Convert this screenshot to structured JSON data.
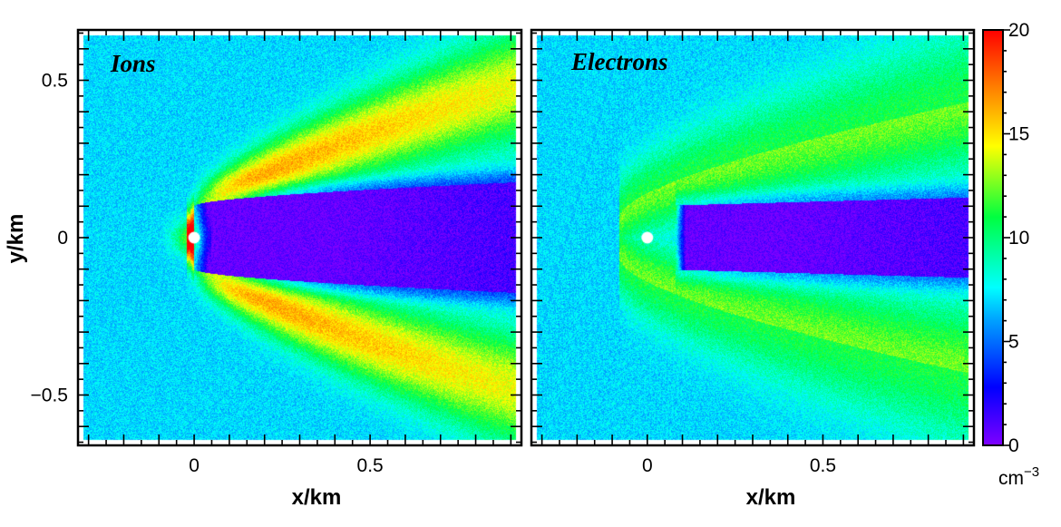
{
  "chart_data": [
    {
      "type": "heatmap",
      "title": "Ions",
      "xlabel": "x/km",
      "ylabel": "y/km",
      "xlim": [
        -0.33,
        0.93
      ],
      "ylim": [
        -0.66,
        0.66
      ],
      "xticks": [
        {
          "value": 0,
          "label": "0"
        },
        {
          "value": 0.5,
          "label": "0.5"
        }
      ],
      "yticks": [
        {
          "value": 0.5,
          "label": "0.5"
        },
        {
          "value": 0,
          "label": "0"
        },
        {
          "value": -0.5,
          "label": "−0.5"
        }
      ],
      "object_position": [
        0,
        0
      ],
      "background_density": 7,
      "wake_density_min": 0.5,
      "wake_front_x": 0,
      "cone_peak_density": 17,
      "notes": "Density enhancement cone (Mach-cone) with ions pile-up near the obstacle; depleted wake behind object"
    },
    {
      "type": "heatmap",
      "title": "Electrons",
      "xlabel": "x/km",
      "ylabel": "",
      "xlim": [
        -0.33,
        0.93
      ],
      "ylim": [
        -0.66,
        0.66
      ],
      "xticks": [
        {
          "value": 0,
          "label": "0"
        },
        {
          "value": 0.5,
          "label": "0.5"
        }
      ],
      "object_position": [
        0,
        0
      ],
      "background_density": 7,
      "wake_density_min": 0.5,
      "wake_front_x": 0.08,
      "cone_peak_density": 11,
      "notes": "Broader, weaker enhancement cone; wake begins downstream of object"
    }
  ],
  "colorbar": {
    "min": 0,
    "max": 20,
    "ticks": [
      {
        "value": 20,
        "label": "20"
      },
      {
        "value": 15,
        "label": "15"
      },
      {
        "value": 10,
        "label": "10"
      },
      {
        "value": 5,
        "label": "5"
      },
      {
        "value": 0,
        "label": "0"
      }
    ],
    "unit_label": "cm",
    "unit_exponent": "−3",
    "colormap": [
      "#7f00ff",
      "#0000ff",
      "#00ffff",
      "#00ff00",
      "#ffff00",
      "#ff7f00",
      "#ff0000"
    ]
  }
}
